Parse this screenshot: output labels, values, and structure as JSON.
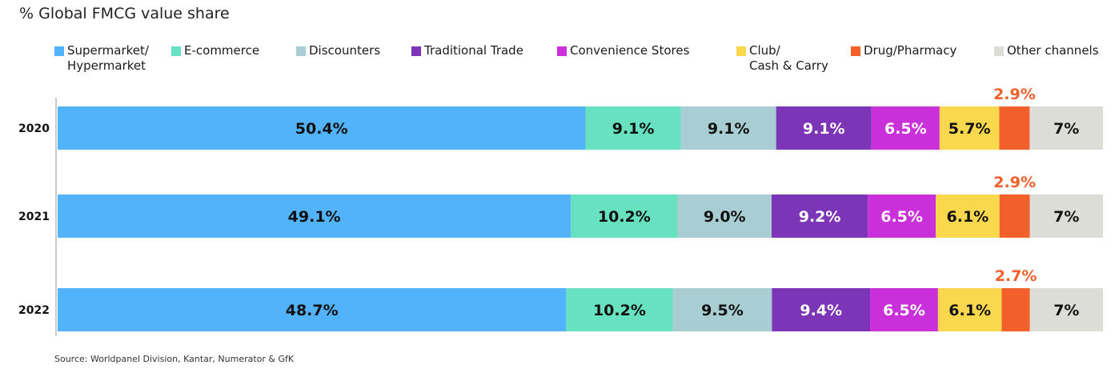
{
  "chart_data": {
    "type": "bar",
    "orientation": "horizontal",
    "stacked": true,
    "title": "% Global FMCG value share",
    "source": "Source: Worldpanel Division, Kantar, Numerator & GfK",
    "categories": [
      "2020",
      "2021",
      "2022"
    ],
    "value_suffix": "%",
    "legend_placement": "top",
    "grid": false,
    "series": [
      {
        "name": "Supermarket/\nHypermarket",
        "color": "#52B3FB",
        "values": [
          50.4,
          49.1,
          48.7
        ],
        "labels": [
          "50.4%",
          "49.1%",
          "48.7%"
        ]
      },
      {
        "name": "E-commerce",
        "color": "#67E2C0",
        "values": [
          9.1,
          10.2,
          10.2
        ],
        "labels": [
          "9.1%",
          "10.2%",
          "10.2%"
        ]
      },
      {
        "name": "Discounters",
        "color": "#A8CDD3",
        "values": [
          9.1,
          9.0,
          9.5
        ],
        "labels": [
          "9.1%",
          "9.0%",
          "9.5%"
        ]
      },
      {
        "name": "Traditional Trade",
        "color": "#7B35B6",
        "values": [
          9.1,
          9.2,
          9.4
        ],
        "labels": [
          "9.1%",
          "9.2%",
          "9.4%"
        ]
      },
      {
        "name": "Convenience Stores",
        "color": "#C930DA",
        "values": [
          6.5,
          6.5,
          6.5
        ],
        "labels": [
          "6.5%",
          "6.5%",
          "6.5%"
        ]
      },
      {
        "name": "Club/\nCash & Carry",
        "color": "#F9D84E",
        "values": [
          5.7,
          6.1,
          6.1
        ],
        "labels": [
          "5.7%",
          "6.1%",
          "6.1%"
        ]
      },
      {
        "name": "Drug/Pharmacy",
        "color": "#F25F2A",
        "values": [
          2.9,
          2.9,
          2.7
        ],
        "labels": [
          "2.9%",
          "2.9%",
          "2.7%"
        ],
        "label_position": "above",
        "label_color": "#F25F2A"
      },
      {
        "name": "Other channels",
        "color": "#DDDDD8",
        "values": [
          7,
          7,
          7
        ],
        "labels": [
          "7%",
          "7%",
          "7%"
        ]
      }
    ]
  }
}
